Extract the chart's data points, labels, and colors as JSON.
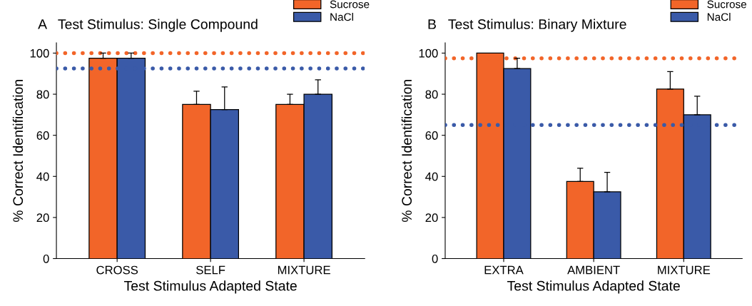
{
  "chart_data": [
    {
      "type": "bar",
      "title": "A   Test Stimulus: Single Compound",
      "xlabel": "Test Stimulus Adapted State",
      "ylabel": "% Correct Identification",
      "categories": [
        "CROSS",
        "SELF",
        "MIXTURE"
      ],
      "series": [
        {
          "name": "Sucrose",
          "color": "#f26529",
          "values": [
            97.5,
            75,
            75
          ],
          "errors": [
            [
              97.5,
              100
            ],
            [
              75,
              81.5
            ],
            [
              75,
              80
            ]
          ]
        },
        {
          "name": "NaCl",
          "color": "#3a5aa8",
          "values": [
            97.5,
            72.5,
            80
          ],
          "errors": [
            [
              97.5,
              100
            ],
            [
              72.5,
              83.5
            ],
            [
              80,
              87
            ]
          ]
        }
      ],
      "ref_lines": [
        {
          "axis": "y",
          "value": 100,
          "color": "#f26529",
          "line_style": "dotted"
        },
        {
          "axis": "y",
          "value": 92.5,
          "color": "#3a5aa8",
          "line_style": "dotted"
        }
      ],
      "ylim": [
        0,
        105
      ],
      "yticks": [
        0,
        20,
        40,
        60,
        80,
        100
      ],
      "legend": "top right",
      "grid": false
    },
    {
      "type": "bar",
      "title": "B   Test Stimulus: Binary Mixture",
      "xlabel": "Test Stimulus Adapted State",
      "ylabel": "% Correct Identification",
      "categories": [
        "EXTRA",
        "AMBIENT",
        "MIXTURE"
      ],
      "series": [
        {
          "name": "Sucrose",
          "color": "#f26529",
          "values": [
            100,
            37.5,
            82.5
          ],
          "errors": [
            null,
            [
              37.5,
              44
            ],
            [
              82.5,
              91
            ]
          ]
        },
        {
          "name": "NaCl",
          "color": "#3a5aa8",
          "values": [
            92.5,
            32.5,
            70
          ],
          "errors": [
            [
              92.5,
              97.5
            ],
            [
              32.5,
              42
            ],
            [
              70,
              79
            ]
          ]
        }
      ],
      "ref_lines": [
        {
          "axis": "y",
          "value": 97.5,
          "color": "#f26529",
          "line_style": "dotted"
        },
        {
          "axis": "y",
          "value": 65,
          "color": "#3a5aa8",
          "line_style": "dotted"
        }
      ],
      "ylim": [
        0,
        105
      ],
      "yticks": [
        0,
        20,
        40,
        60,
        80,
        100
      ],
      "legend": "top right",
      "grid": false
    }
  ]
}
